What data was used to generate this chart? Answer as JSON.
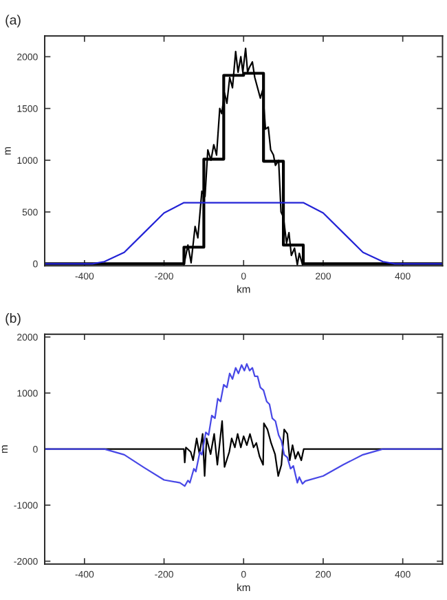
{
  "chart_data": [
    {
      "type": "line",
      "title": "(a)",
      "xlabel": "km",
      "ylabel": "m",
      "xlim": [
        -500,
        500
      ],
      "xticks": [
        -400,
        -200,
        0,
        200,
        400
      ],
      "ylim": [
        -20,
        2200
      ],
      "yticks": [
        0,
        500,
        1000,
        1500,
        2000
      ],
      "grid": false,
      "legend": false,
      "series": [
        {
          "type": "line",
          "color": "#000000",
          "x": [
            -150,
            -140,
            -132,
            -122,
            -115,
            -105,
            -97,
            -90,
            -82,
            -75,
            -68,
            -60,
            -55,
            -48,
            -42,
            -35,
            -28,
            -20,
            -14,
            -7,
            -2,
            5,
            10,
            15,
            22,
            28,
            35,
            42,
            48,
            55,
            62,
            68,
            75,
            80,
            88,
            94,
            100,
            108,
            114,
            120,
            128,
            135,
            140,
            148
          ],
          "values": [
            -10,
            180,
            10,
            360,
            250,
            700,
            650,
            1100,
            1000,
            1150,
            1050,
            1500,
            1450,
            1650,
            1550,
            1800,
            1700,
            2050,
            1850,
            2000,
            1850,
            2080,
            1850,
            1900,
            1950,
            1800,
            1700,
            1600,
            1680,
            1300,
            1320,
            1100,
            1050,
            950,
            1000,
            500,
            450,
            200,
            300,
            80,
            150,
            -10,
            100,
            -10
          ]
        },
        {
          "type": "step",
          "color": "#000000",
          "x": [
            -500,
            -150,
            -100,
            -50,
            0,
            50,
            100,
            150,
            500
          ],
          "values": [
            0,
            160,
            1010,
            1820,
            1840,
            990,
            180,
            0,
            0
          ]
        },
        {
          "type": "line",
          "color": "#2323d6",
          "x": [
            -500,
            -380,
            -350,
            -300,
            -250,
            -200,
            -150,
            150,
            200,
            250,
            300,
            350,
            380,
            500
          ],
          "values": [
            0,
            0,
            20,
            110,
            300,
            490,
            590,
            590,
            490,
            300,
            110,
            20,
            0,
            0
          ]
        }
      ]
    },
    {
      "type": "line",
      "title": "(b)",
      "xlabel": "km",
      "ylabel": "m",
      "xlim": [
        -500,
        500
      ],
      "xticks": [
        -400,
        -200,
        0,
        200,
        400
      ],
      "ylim": [
        -2050,
        2050
      ],
      "yticks": [
        -2000,
        -1000,
        0,
        1000,
        2000
      ],
      "grid": false,
      "legend": false,
      "series": [
        {
          "type": "line",
          "color": "#000000",
          "x": [
            -500,
            -150,
            -148,
            -145,
            -133,
            -127,
            -118,
            -111,
            -103,
            -98,
            -93,
            -83,
            -74,
            -66,
            -54,
            -48,
            -36,
            -30,
            -22,
            -15,
            -7,
            0,
            8,
            16,
            25,
            32,
            40,
            49,
            51,
            60,
            69,
            79,
            87,
            95,
            102,
            110,
            116,
            123,
            130,
            137,
            145,
            151,
            500
          ],
          "values": [
            0,
            0,
            -240,
            30,
            -50,
            -200,
            190,
            -90,
            270,
            -480,
            190,
            -90,
            270,
            -280,
            500,
            -320,
            -50,
            190,
            30,
            270,
            30,
            230,
            70,
            270,
            30,
            110,
            -130,
            -280,
            460,
            350,
            110,
            -90,
            -480,
            -280,
            350,
            270,
            -200,
            70,
            -170,
            -50,
            -200,
            0,
            0
          ]
        },
        {
          "type": "line",
          "color": "#4747e6",
          "x": [
            -500,
            -350,
            -300,
            -250,
            -200,
            -160,
            -148,
            -140,
            -135,
            -125,
            -120,
            -110,
            -105,
            -95,
            -88,
            -80,
            -72,
            -65,
            -58,
            -50,
            -42,
            -35,
            -28,
            -20,
            -13,
            -5,
            2,
            8,
            15,
            22,
            28,
            35,
            42,
            50,
            58,
            65,
            72,
            80,
            88,
            95,
            102,
            110,
            118,
            125,
            135,
            140,
            148,
            155,
            200,
            250,
            300,
            350,
            500
          ],
          "values": [
            0,
            0,
            -100,
            -330,
            -550,
            -600,
            -660,
            -560,
            -600,
            -350,
            -400,
            -50,
            -100,
            300,
            250,
            600,
            550,
            900,
            850,
            1150,
            1100,
            1350,
            1250,
            1450,
            1350,
            1500,
            1400,
            1520,
            1400,
            1450,
            1300,
            1300,
            1100,
            1050,
            850,
            800,
            550,
            500,
            250,
            150,
            -100,
            -150,
            -350,
            -300,
            -600,
            -500,
            -620,
            -570,
            -480,
            -280,
            -100,
            0,
            0
          ]
        }
      ]
    }
  ]
}
